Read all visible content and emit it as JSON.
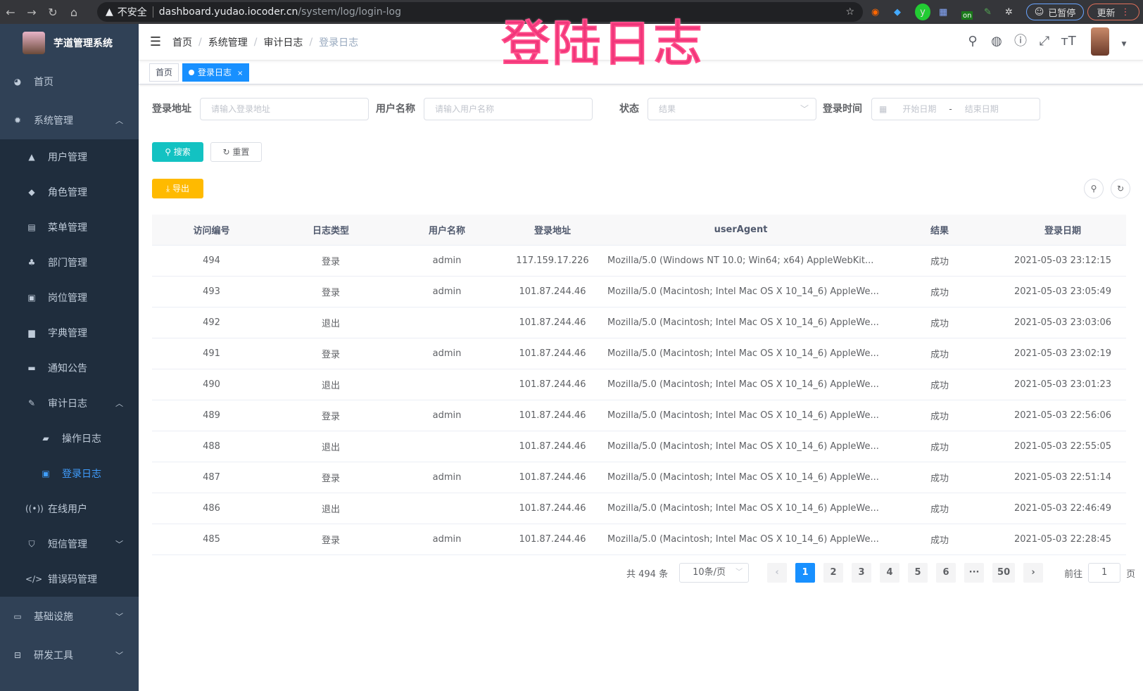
{
  "browser": {
    "security": "不安全",
    "host": "dashboard.yudao.iocoder.cn",
    "path": "/system/log/login-log",
    "profile": "已暂停",
    "update": "更新",
    "ext_badge": "on"
  },
  "overlay_title": "登陆日志",
  "sidebar": {
    "title": "芋道管理系统",
    "items": [
      {
        "label": "首页",
        "icon": "dashboard-icon"
      },
      {
        "label": "系统管理",
        "icon": "gear-icon",
        "expanded": true,
        "children": [
          {
            "label": "用户管理",
            "icon": "user-icon"
          },
          {
            "label": "角色管理",
            "icon": "peoples-icon"
          },
          {
            "label": "菜单管理",
            "icon": "tree-table-icon"
          },
          {
            "label": "部门管理",
            "icon": "tree-icon"
          },
          {
            "label": "岗位管理",
            "icon": "post-icon"
          },
          {
            "label": "字典管理",
            "icon": "dict-icon"
          },
          {
            "label": "通知公告",
            "icon": "message-icon"
          },
          {
            "label": "审计日志",
            "icon": "log-icon",
            "expanded": true,
            "children": [
              {
                "label": "操作日志",
                "icon": "form-icon"
              },
              {
                "label": "登录日志",
                "icon": "logininfor-icon",
                "active": true
              }
            ]
          },
          {
            "label": "在线用户",
            "icon": "online-icon"
          },
          {
            "label": "短信管理",
            "icon": "validcode-icon"
          },
          {
            "label": "错误码管理",
            "icon": "code-icon"
          }
        ]
      },
      {
        "label": "基础设施",
        "icon": "monitor-icon"
      },
      {
        "label": "研发工具",
        "icon": "tool-icon"
      }
    ]
  },
  "breadcrumb": [
    "首页",
    "系统管理",
    "审计日志",
    "登录日志"
  ],
  "tags": [
    {
      "label": "首页"
    },
    {
      "label": "登录日志",
      "active": true
    }
  ],
  "filters": {
    "ip_label": "登录地址",
    "ip_placeholder": "请输入登录地址",
    "user_label": "用户名称",
    "user_placeholder": "请输入用户名称",
    "status_label": "状态",
    "status_placeholder": "结果",
    "time_label": "登录时间",
    "start_placeholder": "开始日期",
    "end_placeholder": "结束日期",
    "range_sep": "-"
  },
  "buttons": {
    "search": "搜索",
    "reset": "重置",
    "export": "导出"
  },
  "colors": {
    "sidebar": "#304156",
    "submenu": "#1f2d3d",
    "primary": "#1890ff",
    "search": "#13c2c2",
    "export": "#ffba00"
  },
  "table": {
    "columns": [
      "访问编号",
      "日志类型",
      "用户名称",
      "登录地址",
      "userAgent",
      "结果",
      "登录日期"
    ],
    "rows": [
      [
        "494",
        "登录",
        "admin",
        "117.159.17.226",
        "Mozilla/5.0 (Windows NT 10.0; Win64; x64) AppleWebKit...",
        "成功",
        "2021-05-03 23:12:15"
      ],
      [
        "493",
        "登录",
        "admin",
        "101.87.244.46",
        "Mozilla/5.0 (Macintosh; Intel Mac OS X 10_14_6) AppleWe...",
        "成功",
        "2021-05-03 23:05:49"
      ],
      [
        "492",
        "退出",
        "",
        "101.87.244.46",
        "Mozilla/5.0 (Macintosh; Intel Mac OS X 10_14_6) AppleWe...",
        "成功",
        "2021-05-03 23:03:06"
      ],
      [
        "491",
        "登录",
        "admin",
        "101.87.244.46",
        "Mozilla/5.0 (Macintosh; Intel Mac OS X 10_14_6) AppleWe...",
        "成功",
        "2021-05-03 23:02:19"
      ],
      [
        "490",
        "退出",
        "",
        "101.87.244.46",
        "Mozilla/5.0 (Macintosh; Intel Mac OS X 10_14_6) AppleWe...",
        "成功",
        "2021-05-03 23:01:23"
      ],
      [
        "489",
        "登录",
        "admin",
        "101.87.244.46",
        "Mozilla/5.0 (Macintosh; Intel Mac OS X 10_14_6) AppleWe...",
        "成功",
        "2021-05-03 22:56:06"
      ],
      [
        "488",
        "退出",
        "",
        "101.87.244.46",
        "Mozilla/5.0 (Macintosh; Intel Mac OS X 10_14_6) AppleWe...",
        "成功",
        "2021-05-03 22:55:05"
      ],
      [
        "487",
        "登录",
        "admin",
        "101.87.244.46",
        "Mozilla/5.0 (Macintosh; Intel Mac OS X 10_14_6) AppleWe...",
        "成功",
        "2021-05-03 22:51:14"
      ],
      [
        "486",
        "退出",
        "",
        "101.87.244.46",
        "Mozilla/5.0 (Macintosh; Intel Mac OS X 10_14_6) AppleWe...",
        "成功",
        "2021-05-03 22:46:49"
      ],
      [
        "485",
        "登录",
        "admin",
        "101.87.244.46",
        "Mozilla/5.0 (Macintosh; Intel Mac OS X 10_14_6) AppleWe...",
        "成功",
        "2021-05-03 22:28:45"
      ]
    ]
  },
  "pagination": {
    "total": "共 494 条",
    "page_size": "10条/页",
    "pages": [
      "1",
      "2",
      "3",
      "4",
      "5",
      "6",
      "···",
      "50"
    ],
    "current": "1",
    "goto_label": "前往",
    "goto_value": "1",
    "goto_suffix": "页"
  }
}
